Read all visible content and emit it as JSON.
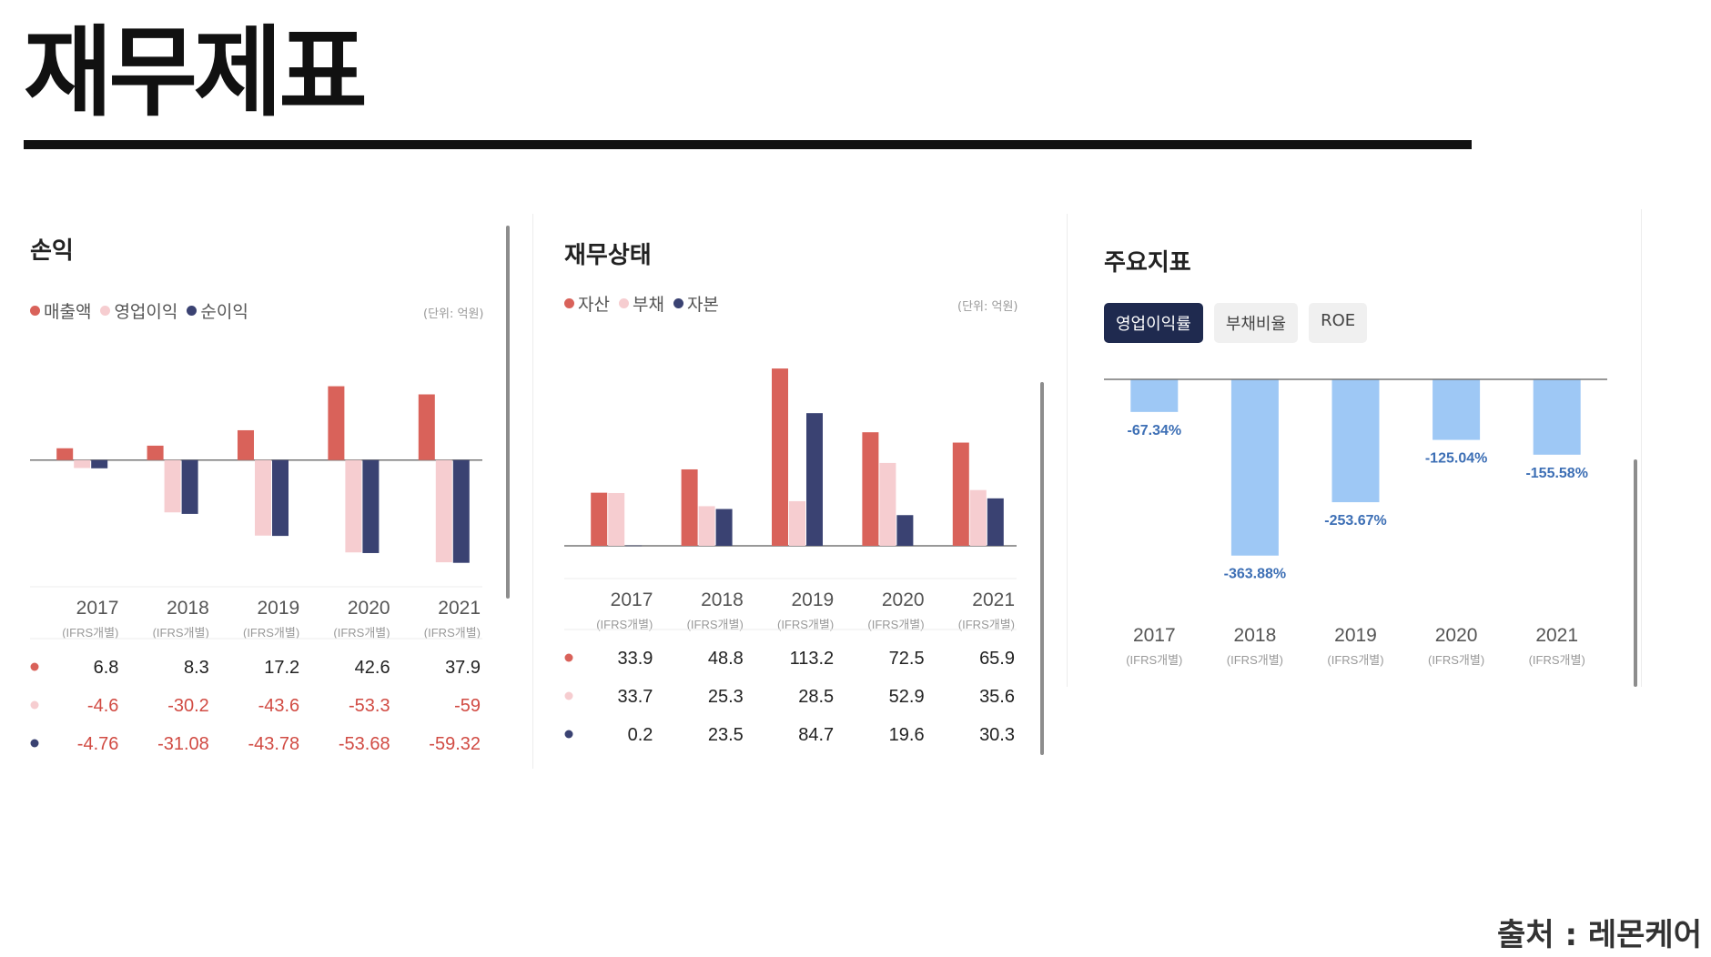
{
  "page": {
    "title": "재무제표",
    "source": "출처 : 레몬케어"
  },
  "colors": {
    "red": "#d9625a",
    "pink": "#f6cdd0",
    "navy": "#3a4272",
    "blue": "#9ec8f5",
    "neg_text": "#d14b43",
    "pct_text": "#3d6fb5"
  },
  "chart_data": [
    {
      "type": "bar",
      "heading": "손익",
      "unit": "(단위: 억원)",
      "categories": [
        "2017",
        "2018",
        "2019",
        "2020",
        "2021"
      ],
      "category_note": "(IFRS개별)",
      "series": [
        {
          "name": "매출액",
          "values": [
            6.8,
            8.3,
            17.2,
            42.6,
            37.9
          ],
          "display": [
            "6.8",
            "8.3",
            "17.2",
            "42.6",
            "37.9"
          ]
        },
        {
          "name": "영업이익",
          "values": [
            -4.6,
            -30.2,
            -43.6,
            -53.3,
            -59
          ],
          "display": [
            "-4.6",
            "-30.2",
            "-43.6",
            "-53.3",
            "-59"
          ]
        },
        {
          "name": "순이익",
          "values": [
            -4.76,
            -31.08,
            -43.78,
            -53.68,
            -59.32
          ],
          "display": [
            "-4.76",
            "-31.08",
            "-43.78",
            "-53.68",
            "-59.32"
          ]
        }
      ],
      "ylim": [
        -60,
        45
      ],
      "grid": false,
      "legend_position": "top-left"
    },
    {
      "type": "bar",
      "heading": "재무상태",
      "unit": "(단위: 억원)",
      "categories": [
        "2017",
        "2018",
        "2019",
        "2020",
        "2021"
      ],
      "category_note": "(IFRS개별)",
      "series": [
        {
          "name": "자산",
          "values": [
            33.9,
            48.8,
            113.2,
            72.5,
            65.9
          ],
          "display": [
            "33.9",
            "48.8",
            "113.2",
            "72.5",
            "65.9"
          ]
        },
        {
          "name": "부채",
          "values": [
            33.7,
            25.3,
            28.5,
            52.9,
            35.6
          ],
          "display": [
            "33.7",
            "25.3",
            "28.5",
            "52.9",
            "35.6"
          ]
        },
        {
          "name": "자본",
          "values": [
            0.2,
            23.5,
            84.7,
            19.6,
            30.3
          ],
          "display": [
            "0.2",
            "23.5",
            "84.7",
            "19.6",
            "30.3"
          ]
        }
      ],
      "ylim": [
        0,
        115
      ],
      "grid": false,
      "legend_position": "top-left"
    },
    {
      "type": "bar",
      "heading": "주요지표",
      "tabs": [
        "영업이익률",
        "부채비율",
        "ROE"
      ],
      "active_tab": "영업이익률",
      "categories": [
        "2017",
        "2018",
        "2019",
        "2020",
        "2021"
      ],
      "category_note": "(IFRS개별)",
      "series": [
        {
          "name": "영업이익률",
          "values": [
            -67.34,
            -363.88,
            -253.67,
            -125.04,
            -155.58
          ],
          "labels": [
            "-67.34%",
            "-363.88%",
            "-253.67%",
            "-125.04%",
            "-155.58%"
          ]
        }
      ],
      "ylim": [
        -370,
        0
      ],
      "grid": false
    }
  ]
}
